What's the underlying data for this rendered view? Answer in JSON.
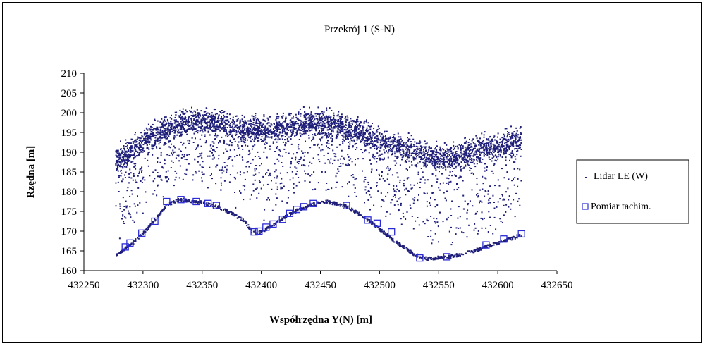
{
  "chart_data": {
    "type": "scatter",
    "title": "Przekrój 1 (S-N)",
    "xlabel": "Współrzędna Y(N) [m]",
    "ylabel": "Rzędna [m]",
    "xlim": [
      432250,
      432650
    ],
    "ylim": [
      160,
      210
    ],
    "xticks": [
      432250,
      432300,
      432350,
      432400,
      432450,
      432500,
      432550,
      432600,
      432650
    ],
    "yticks": [
      160,
      165,
      170,
      175,
      180,
      185,
      190,
      195,
      200,
      205,
      210
    ],
    "grid": false,
    "legend_position": "right",
    "series": [
      {
        "name": "Lidar LE (W)",
        "marker": "dot",
        "color": "#1f1f7a",
        "x_range": [
          432277,
          432620
        ],
        "ground_profile": [
          [
            432277,
            164.0
          ],
          [
            432290,
            166.5
          ],
          [
            432305,
            171.0
          ],
          [
            432320,
            176.5
          ],
          [
            432330,
            178.0
          ],
          [
            432345,
            177.5
          ],
          [
            432360,
            176.5
          ],
          [
            432375,
            174.5
          ],
          [
            432386,
            172.5
          ],
          [
            432392,
            170.0
          ],
          [
            432398,
            169.5
          ],
          [
            432410,
            171.5
          ],
          [
            432425,
            174.5
          ],
          [
            432440,
            176.5
          ],
          [
            432455,
            177.5
          ],
          [
            432470,
            176.5
          ],
          [
            432485,
            174.0
          ],
          [
            432500,
            170.5
          ],
          [
            432515,
            167.0
          ],
          [
            432530,
            164.0
          ],
          [
            432540,
            163.0
          ],
          [
            432560,
            163.5
          ],
          [
            432580,
            165.0
          ],
          [
            432600,
            167.0
          ],
          [
            432620,
            169.0
          ]
        ],
        "canopy_profile": [
          [
            432277,
            188.0
          ],
          [
            432290,
            190.0
          ],
          [
            432305,
            193.5
          ],
          [
            432320,
            196.0
          ],
          [
            432340,
            198.0
          ],
          [
            432360,
            197.5
          ],
          [
            432380,
            196.0
          ],
          [
            432400,
            195.5
          ],
          [
            432420,
            196.5
          ],
          [
            432440,
            197.5
          ],
          [
            432460,
            197.0
          ],
          [
            432480,
            195.5
          ],
          [
            432500,
            193.0
          ],
          [
            432520,
            191.0
          ],
          [
            432540,
            189.5
          ],
          [
            432560,
            188.5
          ],
          [
            432580,
            190.5
          ],
          [
            432600,
            191.5
          ],
          [
            432620,
            193.5
          ]
        ]
      },
      {
        "name": "Pomiar tachim.",
        "marker": "square",
        "color": "#2b2bd6",
        "points": [
          [
            432285,
            166.0
          ],
          [
            432289,
            167.0
          ],
          [
            432299,
            169.5
          ],
          [
            432310,
            172.5
          ],
          [
            432320,
            177.5
          ],
          [
            432332,
            178.0
          ],
          [
            432345,
            177.5
          ],
          [
            432355,
            177.0
          ],
          [
            432362,
            176.5
          ],
          [
            432394,
            169.8
          ],
          [
            432398,
            170.0
          ],
          [
            432404,
            171.0
          ],
          [
            432410,
            171.8
          ],
          [
            432418,
            173.0
          ],
          [
            432424,
            174.5
          ],
          [
            432430,
            175.5
          ],
          [
            432436,
            176.2
          ],
          [
            432444,
            177.0
          ],
          [
            432472,
            176.5
          ],
          [
            432490,
            172.8
          ],
          [
            432498,
            172.0
          ],
          [
            432510,
            169.8
          ],
          [
            432534,
            163.2
          ],
          [
            432557,
            163.5
          ],
          [
            432590,
            166.5
          ],
          [
            432605,
            168.0
          ],
          [
            432620,
            169.3
          ]
        ]
      }
    ]
  }
}
